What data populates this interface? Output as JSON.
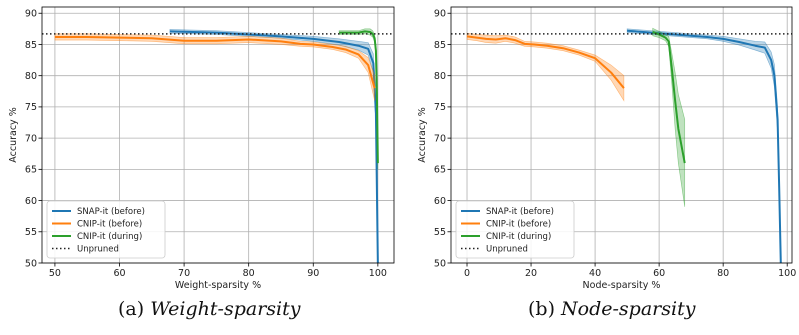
{
  "colors": {
    "snap": "#1f77b4",
    "cnip_before": "#ff7f0e",
    "cnip_during": "#2ca02c",
    "unpruned": "#222222",
    "grid": "#b0b0b0"
  },
  "captions": [
    {
      "prefix": "(a) ",
      "text": "Weight-sparsity"
    },
    {
      "prefix": "(b) ",
      "text": "Node-sparsity"
    }
  ],
  "chart_data": [
    {
      "type": "line",
      "xlabel": "Weight-sparsity %",
      "ylabel": "Accuracy %",
      "xlim": [
        48,
        102.5
      ],
      "ylim": [
        50,
        91
      ],
      "xticks": [
        50,
        60,
        70,
        80,
        90,
        100
      ],
      "yticks": [
        50,
        55,
        60,
        65,
        70,
        75,
        80,
        85,
        90
      ],
      "grid": true,
      "legend_position": "lower-left",
      "unpruned": 86.7,
      "series": [
        {
          "name": "SNAP-it (before)",
          "color_key": "snap",
          "x": [
            67.8,
            75,
            80,
            85,
            90,
            94,
            97,
            98.5,
            99.3,
            99.7,
            99.85,
            100
          ],
          "y": [
            87.1,
            86.9,
            86.6,
            86.3,
            85.9,
            85.4,
            84.8,
            84.3,
            82.0,
            74.0,
            62.0,
            50.0
          ],
          "band": [
            0.3,
            0.3,
            0.3,
            0.3,
            0.4,
            0.5,
            0.7,
            1.0,
            1.5,
            2.0,
            2.0,
            1.0
          ]
        },
        {
          "name": "CNIP-it (before)",
          "color_key": "cnip_before",
          "x": [
            50,
            55,
            60,
            65,
            70,
            75,
            80,
            85,
            88,
            90,
            93,
            95,
            97,
            98.5,
            99.5
          ],
          "y": [
            86.2,
            86.2,
            86.1,
            86.0,
            85.6,
            85.6,
            85.8,
            85.5,
            85.1,
            85.0,
            84.6,
            84.2,
            83.4,
            81.7,
            78.0
          ],
          "band": [
            0.5,
            0.5,
            0.5,
            0.5,
            0.5,
            0.5,
            0.5,
            0.5,
            0.4,
            0.4,
            0.4,
            0.5,
            0.6,
            1.2,
            2.0
          ]
        },
        {
          "name": "CNIP-it (during)",
          "color_key": "cnip_during",
          "x": [
            94,
            95.5,
            97,
            98,
            98.8,
            99.2,
            99.5,
            99.7,
            99.85,
            100
          ],
          "y": [
            86.9,
            86.9,
            86.9,
            87.1,
            87.0,
            86.7,
            86.0,
            84.0,
            77.0,
            66.0
          ],
          "band": [
            0.3,
            0.3,
            0.3,
            0.4,
            0.5,
            0.5,
            0.6,
            1.0,
            1.5,
            1.0
          ]
        }
      ],
      "legend": [
        "SNAP-it (before)",
        "CNIP-it (before)",
        "CNIP-it (during)",
        "Unpruned"
      ]
    },
    {
      "type": "line",
      "xlabel": "Node-sparsity %",
      "ylabel": "Accuracy %",
      "xlim": [
        -5,
        101.5
      ],
      "ylim": [
        50,
        91
      ],
      "xticks": [
        0,
        20,
        40,
        60,
        80,
        100
      ],
      "yticks": [
        50,
        55,
        60,
        65,
        70,
        75,
        80,
        85,
        90
      ],
      "grid": true,
      "legend_position": "lower-left",
      "unpruned": 86.7,
      "series": [
        {
          "name": "SNAP-it (before)",
          "color_key": "snap",
          "x": [
            50,
            55,
            60,
            65,
            70,
            75,
            80,
            85,
            90,
            93,
            95,
            96,
            97,
            97.5,
            98
          ],
          "y": [
            87.2,
            87.0,
            86.8,
            86.6,
            86.4,
            86.2,
            85.9,
            85.4,
            84.8,
            84.5,
            82.5,
            80.0,
            73.0,
            62.0,
            50.0
          ],
          "band": [
            0.3,
            0.3,
            0.3,
            0.3,
            0.3,
            0.3,
            0.4,
            0.5,
            0.7,
            0.9,
            1.3,
            1.8,
            2.0,
            2.0,
            1.0
          ]
        },
        {
          "name": "CNIP-it (before)",
          "color_key": "cnip_before",
          "x": [
            0,
            3,
            6,
            9,
            12,
            15,
            18,
            21,
            25,
            30,
            35,
            40,
            45,
            49
          ],
          "y": [
            86.3,
            86.1,
            85.9,
            85.8,
            86.0,
            85.7,
            85.1,
            85.0,
            84.8,
            84.4,
            83.7,
            82.8,
            80.5,
            78.0
          ],
          "band": [
            0.5,
            0.5,
            0.6,
            0.6,
            0.5,
            0.5,
            0.4,
            0.4,
            0.4,
            0.4,
            0.4,
            0.5,
            1.2,
            2.0
          ]
        },
        {
          "name": "CNIP-it (during)",
          "color_key": "cnip_during",
          "x": [
            58,
            60,
            62,
            63,
            64,
            65,
            66,
            68
          ],
          "y": [
            87.0,
            86.6,
            86.1,
            85.5,
            81.0,
            76.0,
            71.5,
            66.0
          ],
          "band": [
            0.6,
            0.5,
            0.5,
            0.8,
            2.5,
            4.5,
            5.5,
            7.0
          ]
        }
      ],
      "legend": [
        "SNAP-it (before)",
        "CNIP-it (before)",
        "CNIP-it (during)",
        "Unpruned"
      ]
    }
  ]
}
